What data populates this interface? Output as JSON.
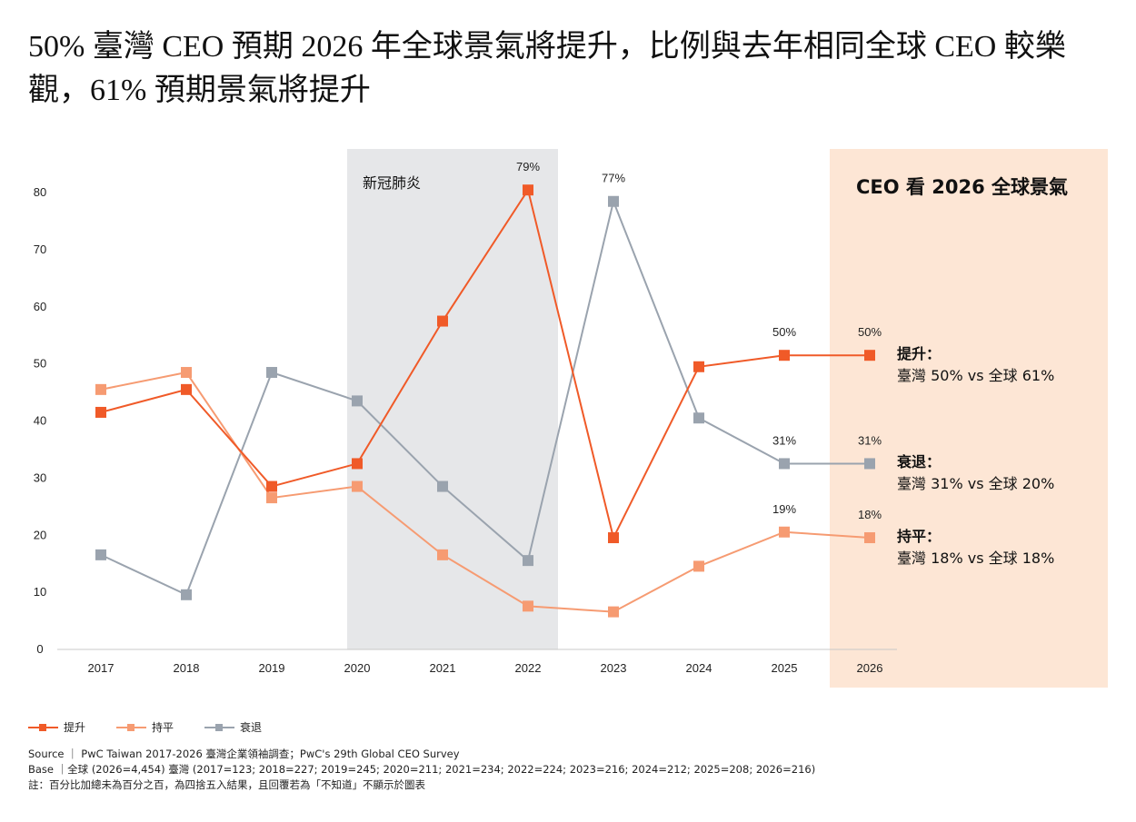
{
  "title": "50% 臺灣 CEO 預期 2026 年全球景氣將提升，比例與去年相同全球 CEO 較樂觀，61% 預期景氣將提升",
  "colors": {
    "up": "#f05a28",
    "flat": "#f69b72",
    "down": "#9aa3ae",
    "covid_band": "#e6e7e9",
    "panel_band": "#fde6d5"
  },
  "chart_data": {
    "type": "line",
    "title": "50% 臺灣 CEO 預期 2026 年全球景氣將提升，比例與去年相同全球 CEO 較樂觀，61% 預期景氣將提升",
    "xlabel": "",
    "ylabel": "",
    "categories": [
      "2017",
      "2018",
      "2019",
      "2020",
      "2021",
      "2022",
      "2023",
      "2024",
      "2025",
      "2026"
    ],
    "yticks": [
      0,
      10,
      20,
      30,
      40,
      50,
      60,
      70,
      80
    ],
    "ylim": [
      0,
      80
    ],
    "grid": false,
    "legend_position": "bottom-left",
    "series": [
      {
        "key": "up",
        "name": "提升",
        "values": [
          40,
          44,
          27,
          31,
          56,
          79,
          18,
          48,
          50,
          50
        ]
      },
      {
        "key": "flat",
        "name": "持平",
        "values": [
          44,
          47,
          25,
          27,
          15,
          6,
          5,
          13,
          19,
          18
        ]
      },
      {
        "key": "down",
        "name": "衰退",
        "values": [
          15,
          8,
          47,
          42,
          27,
          14,
          77,
          39,
          31,
          31
        ]
      }
    ],
    "data_labels": [
      {
        "series": "up",
        "category": "2022",
        "text": "79%"
      },
      {
        "series": "down",
        "category": "2023",
        "text": "77%"
      },
      {
        "series": "up",
        "category": "2025",
        "text": "50%"
      },
      {
        "series": "up",
        "category": "2026",
        "text": "50%"
      },
      {
        "series": "down",
        "category": "2025",
        "text": "31%"
      },
      {
        "series": "down",
        "category": "2026",
        "text": "31%"
      },
      {
        "series": "flat",
        "category": "2025",
        "text": "19%"
      },
      {
        "series": "flat",
        "category": "2026",
        "text": "18%"
      }
    ],
    "annotations": [
      {
        "type": "band",
        "from": "2020",
        "to": "2022",
        "label": "新冠肺炎"
      },
      {
        "type": "band",
        "from": "2026",
        "to": "2026",
        "label": "CEO 看 2026 全球景氣"
      }
    ]
  },
  "panel": {
    "title": "CEO 看 2026 全球景氣",
    "callouts": [
      {
        "heading": "提升：",
        "body": "臺灣 50% vs 全球 61%"
      },
      {
        "heading": "衰退：",
        "body": "臺灣 31% vs 全球 20%"
      },
      {
        "heading": "持平：",
        "body": "臺灣 18% vs 全球 18%"
      }
    ]
  },
  "legend": [
    {
      "key": "up",
      "label": "提升"
    },
    {
      "key": "flat",
      "label": "持平"
    },
    {
      "key": "down",
      "label": "衰退"
    }
  ],
  "notes": {
    "source": "Source ｜ PwC Taiwan 2017-2026 臺灣企業領袖調查；PwC's 29th Global CEO Survey",
    "base": "Base ｜全球 (2026=4,454) 臺灣 (2017=123; 2018=227; 2019=245; 2020=211; 2021=234; 2022=224; 2023=216; 2024=212; 2025=208; 2026=216)",
    "footnote": "註：百分比加總未為百分之百，為四捨五入結果，且回覆若為「不知道」不顯示於圖表"
  }
}
